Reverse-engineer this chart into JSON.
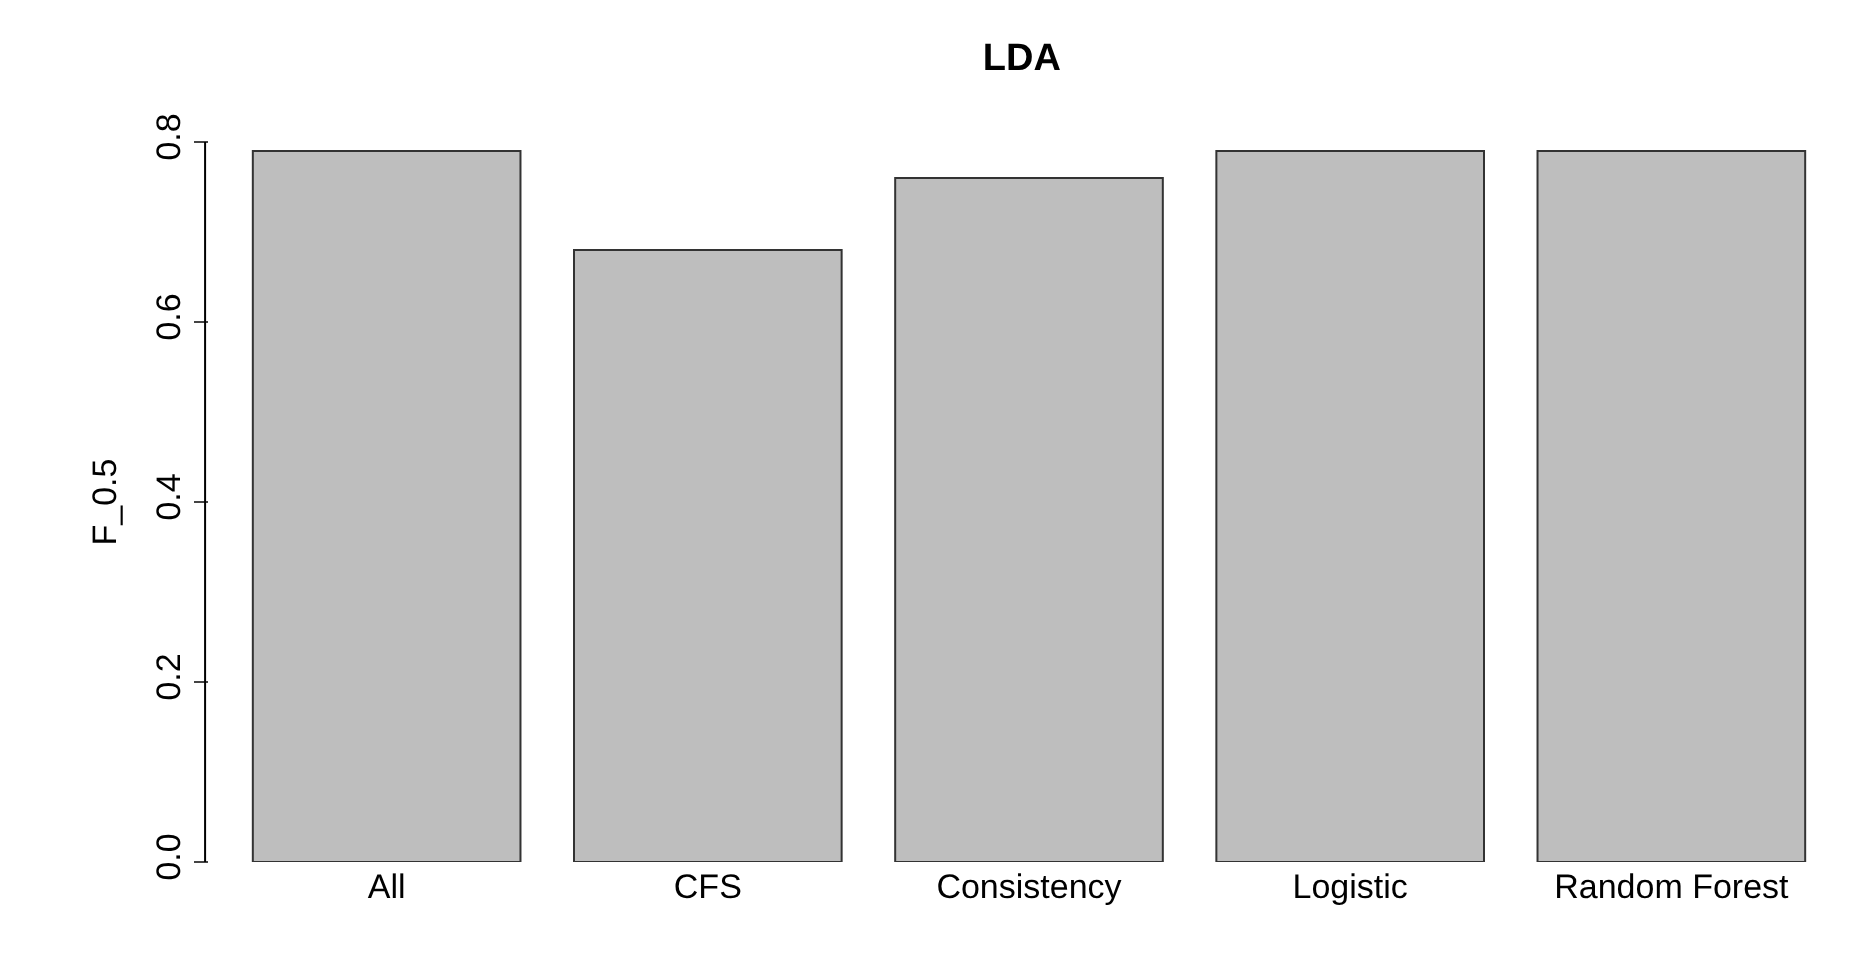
{
  "chart_data": {
    "type": "bar",
    "title": "LDA",
    "ylabel": "F_0.5",
    "categories": [
      "All",
      "CFS",
      "Consistency",
      "Logistic",
      "Random Forest"
    ],
    "values": [
      0.79,
      0.68,
      0.76,
      0.79,
      0.79
    ],
    "color": "#bebebe",
    "ylim": [
      0,
      0.8
    ],
    "yticks": [
      {
        "value": 0,
        "label": "0.0"
      },
      {
        "value": 0.2,
        "label": "0.2"
      },
      {
        "value": 0.4,
        "label": "0.4"
      },
      {
        "value": 0.6,
        "label": "0.6"
      },
      {
        "value": 0.8,
        "label": "0.8"
      }
    ],
    "legend": false
  }
}
